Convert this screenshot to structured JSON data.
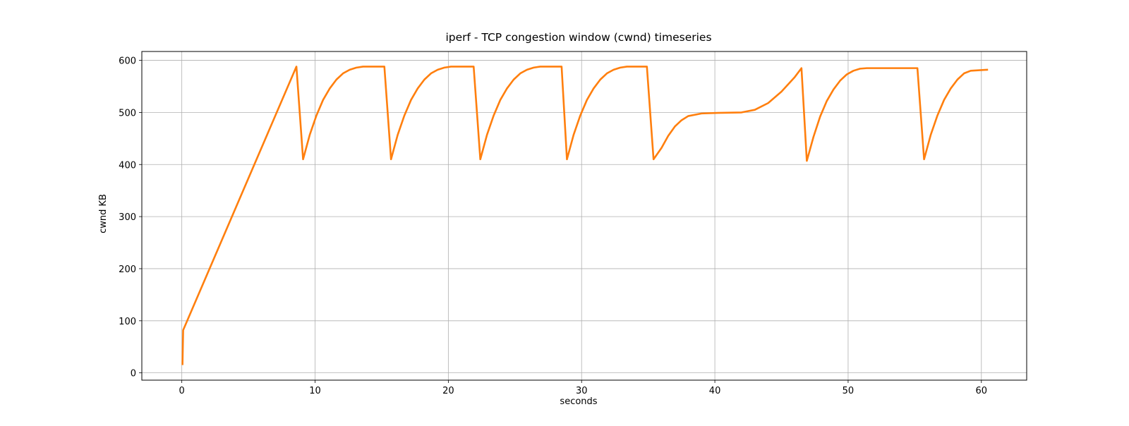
{
  "chart_data": {
    "type": "line",
    "title": "iperf - TCP congestion window (cwnd) timeseries",
    "xlabel": "seconds",
    "ylabel": "cwnd KB",
    "x": [
      0.05,
      0.1,
      8.6,
      9.1,
      9.6,
      10.1,
      10.6,
      11.1,
      11.6,
      12.1,
      12.6,
      13.1,
      13.6,
      15.2,
      15.7,
      16.2,
      16.7,
      17.2,
      17.7,
      18.2,
      18.7,
      19.2,
      19.7,
      20.2,
      21.9,
      22.4,
      22.9,
      23.4,
      23.9,
      24.4,
      24.9,
      25.4,
      25.9,
      26.4,
      26.9,
      28.5,
      28.9,
      29.4,
      29.9,
      30.4,
      30.9,
      31.4,
      31.9,
      32.4,
      32.9,
      33.4,
      34.9,
      35.4,
      36,
      36.5,
      37,
      37.5,
      38,
      39,
      40,
      42,
      43,
      44,
      45,
      46,
      46.5,
      46.9,
      47.4,
      47.9,
      48.4,
      48.9,
      49.4,
      49.9,
      50.4,
      50.9,
      51.4,
      55.2,
      55.7,
      56.2,
      56.7,
      57.2,
      57.7,
      58.2,
      58.7,
      59.2,
      60.5
    ],
    "values": [
      15,
      82,
      588,
      410,
      457,
      494,
      524,
      546,
      563,
      575,
      582,
      586,
      588,
      588,
      410,
      457,
      494,
      524,
      546,
      563,
      575,
      582,
      586,
      588,
      588,
      410,
      457,
      494,
      524,
      546,
      563,
      575,
      582,
      586,
      588,
      588,
      410,
      457,
      494,
      524,
      546,
      563,
      575,
      582,
      586,
      588,
      588,
      410,
      432,
      455,
      473,
      485,
      493,
      498,
      499,
      500,
      505,
      518,
      540,
      568,
      585,
      407,
      453,
      492,
      522,
      544,
      561,
      573,
      580,
      584,
      585,
      585,
      410,
      457,
      494,
      524,
      546,
      563,
      575,
      580,
      582
    ],
    "color": "#ff7f0e",
    "xlim": [
      -3,
      63.4
    ],
    "ylim": [
      -14,
      617
    ],
    "xticks": [
      0,
      10,
      20,
      30,
      40,
      50,
      60
    ],
    "yticks": [
      0,
      100,
      200,
      300,
      400,
      500,
      600
    ],
    "grid": true
  }
}
